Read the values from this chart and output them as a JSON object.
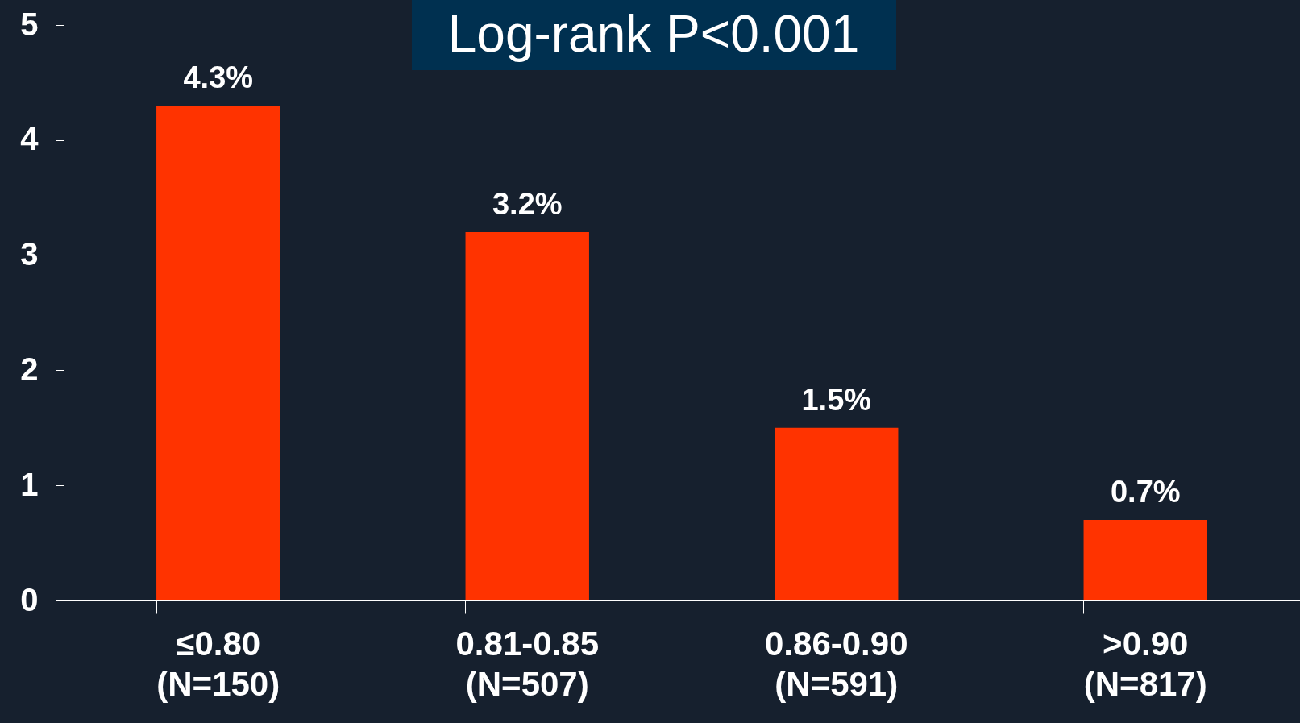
{
  "chart_data": {
    "type": "bar",
    "categories": [
      "≤0.80 (N=150)",
      "0.81-0.85 (N=507)",
      "0.86-0.90 (N=591)",
      ">0.90 (N=817)"
    ],
    "values": [
      4.3,
      3.2,
      1.5,
      0.7
    ],
    "value_labels": [
      "4.3%",
      "3.2%",
      "1.5%",
      "0.7%"
    ],
    "color": "#ff3300",
    "ylim": [
      0,
      5
    ],
    "yticks": [
      0,
      1,
      2,
      3,
      4,
      5
    ],
    "grid": false,
    "annotations": [
      "Log-rank P<0.001"
    ]
  }
}
